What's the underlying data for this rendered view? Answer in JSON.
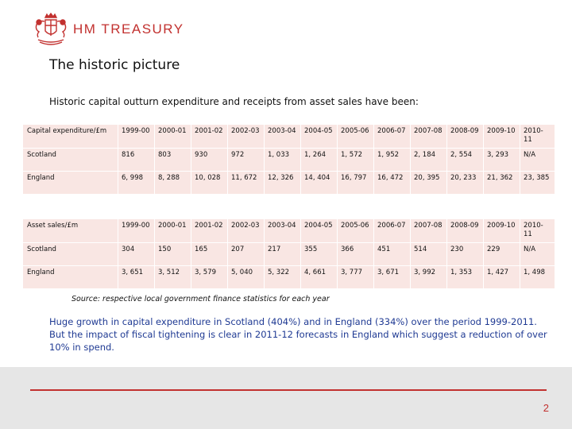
{
  "header": {
    "brand": "HM TREASURY"
  },
  "slide": {
    "title": "The historic picture",
    "intro": "Historic capital outturn expenditure and receipts from asset sales have been:"
  },
  "capital_expenditure": {
    "header": [
      "Capital expenditure/£m",
      "1999-00",
      "2000-01",
      "2001-02",
      "2002-03",
      "2003-04",
      "2004-05",
      "2005-06",
      "2006-07",
      "2007-08",
      "2008-09",
      "2009-10",
      "2010-11"
    ],
    "rows": [
      [
        "Scotland",
        "816",
        "803",
        "930",
        "972",
        "1, 033",
        "1, 264",
        "1, 572",
        "1, 952",
        "2, 184",
        "2, 554",
        "3, 293",
        "N/A"
      ],
      [
        "England",
        "6, 998",
        "8, 288",
        "10, 028",
        "11, 672",
        "12, 326",
        "14, 404",
        "16, 797",
        "16, 472",
        "20, 395",
        "20, 233",
        "21, 362",
        "23, 385"
      ]
    ]
  },
  "asset_sales": {
    "header": [
      "Asset sales/£m",
      "1999-00",
      "2000-01",
      "2001-02",
      "2002-03",
      "2003-04",
      "2004-05",
      "2005-06",
      "2006-07",
      "2007-08",
      "2008-09",
      "2009-10",
      "2010-11"
    ],
    "rows": [
      [
        "Scotland",
        "304",
        "150",
        "165",
        "207",
        "217",
        "355",
        "366",
        "451",
        "514",
        "230",
        "229",
        "N/A"
      ],
      [
        "England",
        "3, 651",
        "3, 512",
        "3, 579",
        "5, 040",
        "5, 322",
        "4, 661",
        "3, 777",
        "3, 671",
        "3, 992",
        "1, 353",
        "1, 427",
        "1, 498"
      ]
    ]
  },
  "source": "Source: respective local government finance statistics for each year",
  "summary": "Huge growth in capital expenditure in Scotland (404%) and in England (334%) over the period 1999-2011. But the impact of fiscal tightening is clear in 2011-12 forecasts in England which suggest a reduction of over 10% in spend.",
  "footer": {
    "page_number": "2"
  },
  "colors": {
    "brand_red": "#c2312f",
    "table_fill": "#f9e6e3",
    "summary_blue": "#1f3a93",
    "footer_grey": "#e6e6e6"
  }
}
